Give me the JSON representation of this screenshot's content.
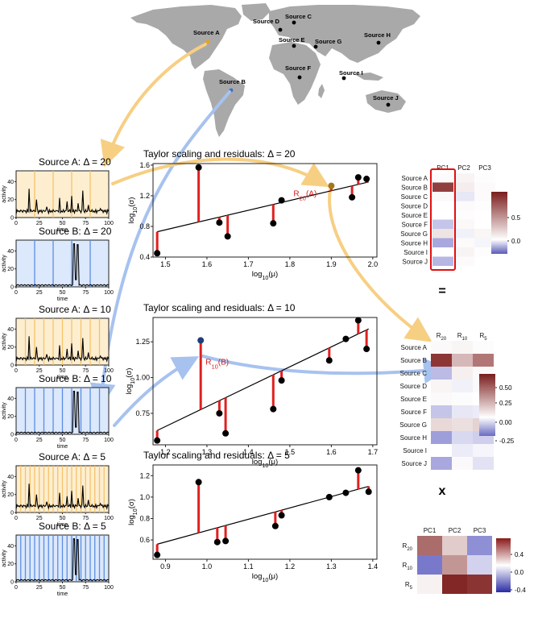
{
  "map": {
    "sources": [
      {
        "label": "Source A",
        "dot": [
          258,
          52
        ],
        "lab": [
          240,
          46
        ],
        "highlight": "orange"
      },
      {
        "label": "Source B",
        "dot": [
          287,
          112
        ],
        "lab": [
          272,
          107
        ],
        "highlight": "blue"
      },
      {
        "label": "Source C",
        "dot": [
          365,
          28
        ],
        "lab": [
          354,
          26
        ]
      },
      {
        "label": "Source D",
        "dot": [
          348,
          37
        ],
        "lab": [
          314,
          32
        ]
      },
      {
        "label": "Source E",
        "dot": [
          365,
          57
        ],
        "lab": [
          346,
          55
        ]
      },
      {
        "label": "Source F",
        "dot": [
          372,
          96
        ],
        "lab": [
          354,
          90
        ]
      },
      {
        "label": "Source G",
        "dot": [
          392,
          58
        ],
        "lab": [
          391,
          57
        ]
      },
      {
        "label": "Source H",
        "dot": [
          470,
          53
        ],
        "lab": [
          452,
          49
        ]
      },
      {
        "label": "Source I",
        "dot": [
          427,
          97
        ],
        "lab": [
          421,
          96
        ]
      },
      {
        "label": "Source J",
        "dot": [
          482,
          130
        ],
        "lab": [
          463,
          127
        ]
      }
    ]
  },
  "small_panels": [
    {
      "title": "Source A: Δ = 20",
      "color": "orange",
      "n": 5,
      "peaks": "A"
    },
    {
      "title": "Source B: Δ = 20",
      "color": "blue",
      "n": 5,
      "peaks": "B"
    },
    {
      "title": "Source A: Δ = 10",
      "color": "orange",
      "n": 10,
      "peaks": "A"
    },
    {
      "title": "Source B: Δ = 10",
      "color": "blue",
      "n": 10,
      "peaks": "B"
    },
    {
      "title": "Source A: Δ = 5",
      "color": "orange",
      "n": 20,
      "peaks": "A"
    },
    {
      "title": "Source B: Δ = 5",
      "color": "blue",
      "n": 20,
      "peaks": "B"
    }
  ],
  "small_axes": {
    "ylabel": "activity",
    "xlabel": "time",
    "yticks": [
      "0",
      "20",
      "40"
    ],
    "xticks": [
      "0",
      "25",
      "50",
      "75",
      "100"
    ]
  },
  "chart_data": [
    {
      "type": "scatter",
      "title": "Taylor scaling and residuals: Δ = 20",
      "xlabel": "log10(μ)",
      "ylabel": "log10(σ)",
      "xlim": [
        1.47,
        2.01
      ],
      "ylim": [
        0.4,
        1.62
      ],
      "xticks": [
        1.5,
        1.6,
        1.7,
        1.8,
        1.9,
        2.0
      ],
      "yticks": [
        0.4,
        0.8,
        1.2,
        1.6
      ],
      "fit": [
        [
          1.48,
          0.73
        ],
        [
          1.99,
          1.38
        ]
      ],
      "points": [
        [
          1.48,
          0.45
        ],
        [
          1.58,
          1.57
        ],
        [
          1.63,
          0.85
        ],
        [
          1.65,
          0.67
        ],
        [
          1.76,
          0.84
        ],
        [
          1.78,
          1.14
        ],
        [
          1.9,
          1.33
        ],
        [
          1.95,
          1.18
        ],
        [
          1.965,
          1.44
        ],
        [
          1.985,
          1.42
        ]
      ],
      "annotation": {
        "text": "R20(A)",
        "point": 6
      }
    },
    {
      "type": "scatter",
      "title": "Taylor scaling and residuals: Δ = 10",
      "xlabel": "log10(μ)",
      "ylabel": "log10(σ)",
      "xlim": [
        1.17,
        1.71
      ],
      "ylim": [
        0.53,
        1.42
      ],
      "xticks": [
        1.2,
        1.3,
        1.4,
        1.5,
        1.6,
        1.7
      ],
      "yticks": [
        0.75,
        1.0,
        1.25
      ],
      "fit": [
        [
          1.18,
          0.63
        ],
        [
          1.69,
          1.34
        ]
      ],
      "points": [
        [
          1.18,
          0.56
        ],
        [
          1.285,
          1.26
        ],
        [
          1.33,
          0.75
        ],
        [
          1.345,
          0.61
        ],
        [
          1.46,
          0.78
        ],
        [
          1.48,
          0.98
        ],
        [
          1.595,
          1.12
        ],
        [
          1.635,
          1.27
        ],
        [
          1.665,
          1.4
        ],
        [
          1.685,
          1.2
        ]
      ],
      "annotation": {
        "text": "R10(B)",
        "point": 1
      }
    },
    {
      "type": "scatter",
      "title": "Taylor scaling and residuals: Δ = 5",
      "xlabel": "log10(μ)",
      "ylabel": "log10(σ)",
      "xlim": [
        0.87,
        1.41
      ],
      "ylim": [
        0.42,
        1.3
      ],
      "xticks": [
        0.9,
        1.0,
        1.1,
        1.2,
        1.3,
        1.4
      ],
      "yticks": [
        0.6,
        0.8,
        1.0,
        1.2
      ],
      "fit": [
        [
          0.88,
          0.56
        ],
        [
          1.39,
          1.1
        ]
      ],
      "points": [
        [
          0.88,
          0.46
        ],
        [
          0.98,
          1.14
        ],
        [
          1.025,
          0.58
        ],
        [
          1.045,
          0.59
        ],
        [
          1.165,
          0.73
        ],
        [
          1.18,
          0.83
        ],
        [
          1.295,
          1.0
        ],
        [
          1.335,
          1.04
        ],
        [
          1.365,
          1.25
        ],
        [
          1.39,
          1.05
        ]
      ]
    }
  ],
  "heatmaps": {
    "pc": {
      "cols": [
        "PC1",
        "PC2",
        "PC3"
      ],
      "rows": [
        "Source A",
        "Source B",
        "Source C",
        "Source D",
        "Source E",
        "Source F",
        "Source G",
        "Source H",
        "Source I",
        "Source J"
      ],
      "values": [
        [
          0.02,
          0.05,
          0.01
        ],
        [
          0.85,
          0.08,
          0.02
        ],
        [
          0.03,
          -0.05,
          0.02
        ],
        [
          0.0,
          0.02,
          0.01
        ],
        [
          0.0,
          0.01,
          0.0
        ],
        [
          -0.12,
          0.03,
          0.0
        ],
        [
          0.12,
          -0.03,
          0.04
        ],
        [
          -0.18,
          0.02,
          -0.02
        ],
        [
          0.0,
          0.05,
          0.01
        ],
        [
          -0.15,
          0.02,
          0.0
        ]
      ],
      "scale": [
        -0.3,
        1.0
      ],
      "cbar_ticks": [
        "0.5",
        "0.0"
      ]
    },
    "res": {
      "cols": [
        "R20",
        "R10",
        "R5"
      ],
      "rows": [
        "Source A",
        "Source B",
        "Source C",
        "Source D",
        "Source E",
        "Source F",
        "Source G",
        "Source H",
        "Source I",
        "Source J"
      ],
      "values": [
        [
          0.02,
          0.03,
          0.01
        ],
        [
          0.62,
          0.22,
          0.42
        ],
        [
          -0.14,
          0.05,
          0.02
        ],
        [
          0.03,
          -0.03,
          0.02
        ],
        [
          0.02,
          0.01,
          0.0
        ],
        [
          -0.12,
          -0.05,
          -0.04
        ],
        [
          0.12,
          0.1,
          0.14
        ],
        [
          -0.2,
          -0.08,
          -0.1
        ],
        [
          0.0,
          -0.04,
          -0.02
        ],
        [
          -0.18,
          0.02,
          -0.06
        ]
      ],
      "scale": [
        -0.3,
        0.7
      ],
      "cbar_ticks": [
        "0.50",
        "0.25",
        "0.00",
        "-0.25"
      ]
    },
    "load": {
      "cols": [
        "PC1",
        "PC2",
        "PC3"
      ],
      "rows": [
        "R20",
        "R10",
        "R5"
      ],
      "values": [
        [
          0.42,
          0.15,
          -0.5
        ],
        [
          -0.6,
          0.3,
          -0.2
        ],
        [
          0.04,
          0.62,
          0.58
        ]
      ],
      "scale": [
        -0.65,
        0.65
      ],
      "cbar_ticks": [
        "0.4",
        "0.0",
        "-0.4"
      ]
    }
  },
  "operators": {
    "equals": "=",
    "times": "x"
  },
  "colors": {
    "orange": "#f5c26b",
    "orange_fill": "#fdeed0",
    "blue": "#5b8ee0",
    "blue_fill": "#dce8fb",
    "red": "#e02020",
    "arrow_orange": "#f7cf83",
    "arrow_blue": "#a7c2ef",
    "map": "#a9a9a9"
  }
}
